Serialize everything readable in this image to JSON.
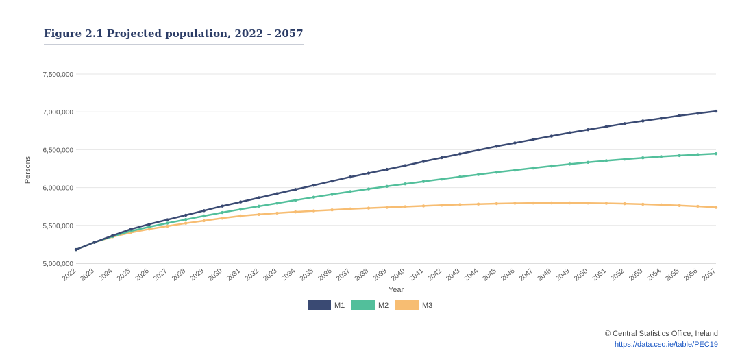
{
  "chart_data": {
    "type": "line",
    "title": "Figure 2.1 Projected population, 2022 - 2057",
    "xlabel": "Year",
    "ylabel": "Persons",
    "ylim": [
      5000000,
      7500000
    ],
    "yticks": [
      "5,000,000",
      "5,500,000",
      "6,000,000",
      "6,500,000",
      "7,000,000",
      "7,500,000"
    ],
    "ytick_values": [
      5000000,
      5500000,
      6000000,
      6500000,
      7000000,
      7500000
    ],
    "categories": [
      "2022",
      "2023",
      "2024",
      "2025",
      "2026",
      "2027",
      "2028",
      "2029",
      "2030",
      "2031",
      "2032",
      "2033",
      "2034",
      "2035",
      "2036",
      "2037",
      "2038",
      "2039",
      "2040",
      "2041",
      "2042",
      "2043",
      "2044",
      "2045",
      "2046",
      "2047",
      "2048",
      "2049",
      "2050",
      "2051",
      "2052",
      "2053",
      "2054",
      "2055",
      "2056",
      "2057"
    ],
    "grid": true,
    "legend": "bottom-center",
    "series": [
      {
        "name": "M1",
        "color": "#3a4a73",
        "values": [
          5180000,
          5275000,
          5365000,
          5450000,
          5515000,
          5575000,
          5635000,
          5695000,
          5755000,
          5810000,
          5865000,
          5920000,
          5975000,
          6030000,
          6085000,
          6140000,
          6190000,
          6240000,
          6290000,
          6345000,
          6395000,
          6445000,
          6495000,
          6545000,
          6590000,
          6635000,
          6680000,
          6725000,
          6765000,
          6805000,
          6845000,
          6880000,
          6915000,
          6950000,
          6980000,
          7010000
        ]
      },
      {
        "name": "M2",
        "color": "#52bf9b",
        "values": [
          5180000,
          5275000,
          5355000,
          5425000,
          5480000,
          5530000,
          5578000,
          5625000,
          5670000,
          5713000,
          5753000,
          5793000,
          5833000,
          5872000,
          5910000,
          5947000,
          5982000,
          6016000,
          6049000,
          6081000,
          6112000,
          6142000,
          6172000,
          6202000,
          6230000,
          6258000,
          6285000,
          6310000,
          6333000,
          6355000,
          6375000,
          6393000,
          6409000,
          6423000,
          6436000,
          6448000
        ]
      },
      {
        "name": "M3",
        "color": "#f7bd72",
        "values": [
          5180000,
          5275000,
          5350000,
          5405000,
          5450000,
          5490000,
          5528000,
          5562000,
          5595000,
          5625000,
          5645000,
          5662000,
          5678000,
          5692000,
          5705000,
          5717000,
          5728000,
          5738000,
          5747000,
          5757000,
          5767000,
          5775000,
          5782000,
          5788000,
          5793000,
          5796000,
          5797000,
          5797000,
          5795000,
          5792000,
          5787000,
          5780000,
          5772000,
          5763000,
          5752000,
          5738000
        ]
      }
    ]
  },
  "footer": {
    "copyright": "© Central Statistics Office, Ireland",
    "link": "https://data.cso.ie/table/PEC19"
  }
}
